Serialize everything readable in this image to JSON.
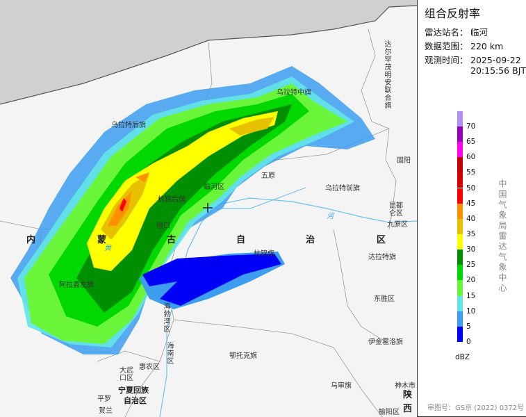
{
  "panel": {
    "title": "组合反射率",
    "station_label": "雷达站名：",
    "station": "临河",
    "range_label": "数据范围：",
    "range": "220 km",
    "time_label": "观测时间：",
    "date": "2025-09-22",
    "time": "20:15:56 BJT",
    "unit": "dBZ",
    "organization": "中国气象局雷达气象中心",
    "approval": "审图号：GS京 (2022) 0372号"
  },
  "legend": {
    "ticks": [
      "0",
      "5",
      "10",
      "15",
      "20",
      "25",
      "30",
      "35",
      "40",
      "45",
      "50",
      "55",
      "60",
      "65",
      "70"
    ],
    "colors": [
      "#0000f6",
      "#3d9ef0",
      "#63e6e8",
      "#6bf53a",
      "#00d800",
      "#008f00",
      "#ffff00",
      "#e7c000",
      "#ff9000",
      "#ff0000",
      "#d60000",
      "#c00000",
      "#ff00f0",
      "#9600b4",
      "#ad90f0"
    ]
  },
  "map": {
    "center_marker": "radar-crosshair",
    "labels": [
      "乌拉特中旗",
      "乌拉特后旗",
      "达尔罕茂明安联合旗",
      "五原",
      "临河区",
      "杭锦后旗",
      "乌拉特前旗",
      "固阳",
      "昆都仑区",
      "九原区",
      "磴口",
      "内",
      "蒙",
      "古",
      "自",
      "治",
      "区",
      "达拉特旗",
      "杭锦旗",
      "阿拉善左旗",
      "东胜区",
      "海勃湾区",
      "海南区",
      "伊金霍洛旗",
      "鄂托克旗",
      "惠农区",
      "大武口区",
      "宁夏回族",
      "自治区",
      "平罗",
      "乌审旗",
      "神木市",
      "陕",
      "西",
      "贺兰",
      "榆阳区",
      "黄",
      "河"
    ]
  }
}
